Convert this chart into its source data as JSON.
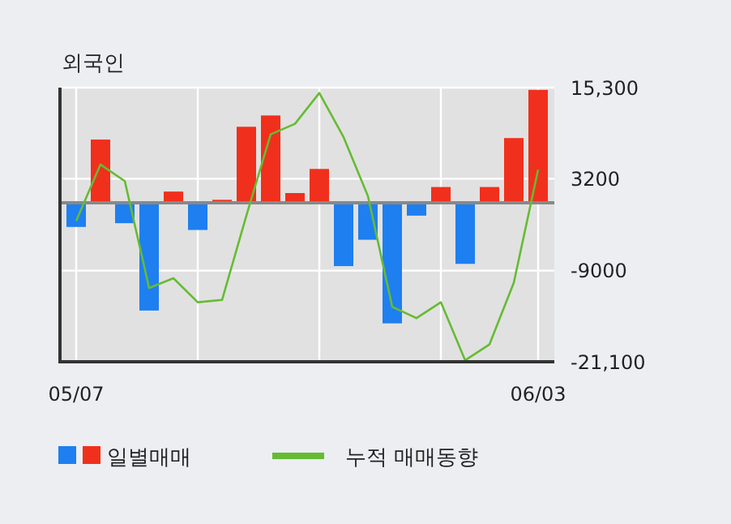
{
  "chart_data": {
    "type": "bar",
    "title": "외국인",
    "categories": [
      "05/07",
      null,
      null,
      null,
      null,
      null,
      null,
      null,
      null,
      null,
      null,
      null,
      null,
      null,
      null,
      null,
      null,
      null,
      null,
      "06/03"
    ],
    "series": [
      {
        "name": "일별매매",
        "colors": [
          "#1e7ff0",
          "#f0301c",
          "#1e7ff0",
          "#1e7ff0",
          "#f0301c",
          "#1e7ff0",
          "#f0301c",
          "#f0301c",
          "#f0301c",
          "#f0301c",
          "#f0301c",
          "#1e7ff0",
          "#1e7ff0",
          "#1e7ff0",
          "#1e7ff0",
          "#f0301c",
          "#1e7ff0",
          "#f0301c",
          "#f0301c",
          "#f0301c"
        ],
        "values": [
          -3200,
          8400,
          -2700,
          -14300,
          1500,
          -3600,
          400,
          10100,
          11600,
          1300,
          4500,
          -8400,
          -4900,
          -16000,
          -1700,
          2100,
          -8100,
          2100,
          8600,
          15000
        ]
      },
      {
        "name": "누적 매매동향",
        "type": "line",
        "color": "#66bb33",
        "values": [
          -2400,
          5100,
          2900,
          -11300,
          -10000,
          -13200,
          -12900,
          -1700,
          9100,
          10500,
          14600,
          8700,
          900,
          -13800,
          -15300,
          -13200,
          -20900,
          -18800,
          -10600,
          4400
        ]
      }
    ],
    "ylim": [
      -21100,
      15300
    ],
    "yticks": [
      {
        "value": 15300,
        "label": "15,300"
      },
      3200,
      -9000,
      {
        "value": -21100,
        "label": "-21,100"
      }
    ],
    "grid": true,
    "legend": "bottom"
  }
}
